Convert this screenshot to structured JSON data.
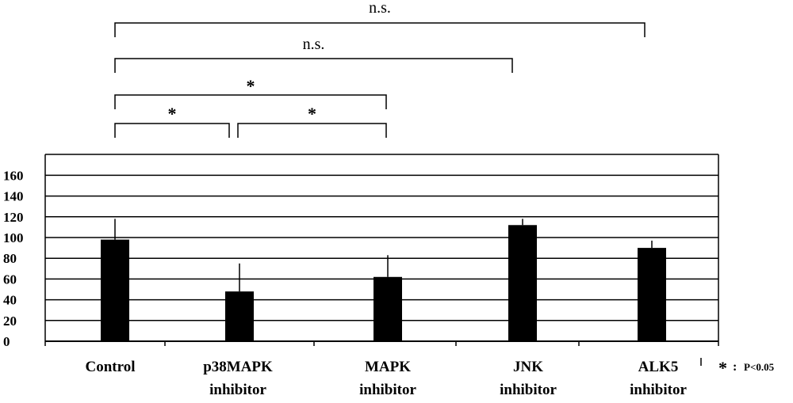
{
  "chart_data": {
    "type": "bar",
    "categories": [
      [
        "Control"
      ],
      [
        "p38MAPK",
        "inhibitor"
      ],
      [
        "MAPK",
        "inhibitor"
      ],
      [
        "JNK",
        "inhibitor"
      ],
      [
        "ALK5",
        "inhibitor"
      ]
    ],
    "values": [
      98,
      48,
      62,
      112,
      90
    ],
    "error_upper": [
      118,
      75,
      83,
      118,
      97
    ],
    "ylim": [
      0,
      180
    ],
    "yticks": [
      0,
      20,
      40,
      60,
      80,
      100,
      120,
      140,
      160
    ],
    "grid": true,
    "bar_color": "#000000",
    "comparisons": [
      {
        "from": 0,
        "to": 4,
        "label": "n.s."
      },
      {
        "from": 0,
        "to": 3,
        "label": "n.s."
      },
      {
        "from": 0,
        "to": 2,
        "label": "*"
      },
      {
        "from": 0,
        "to": 1,
        "label": "*"
      },
      {
        "from": 1,
        "to": 2,
        "label": "*"
      }
    ],
    "legend": {
      "symbol": "*",
      "separator": ":",
      "text": "P<0.05"
    }
  }
}
